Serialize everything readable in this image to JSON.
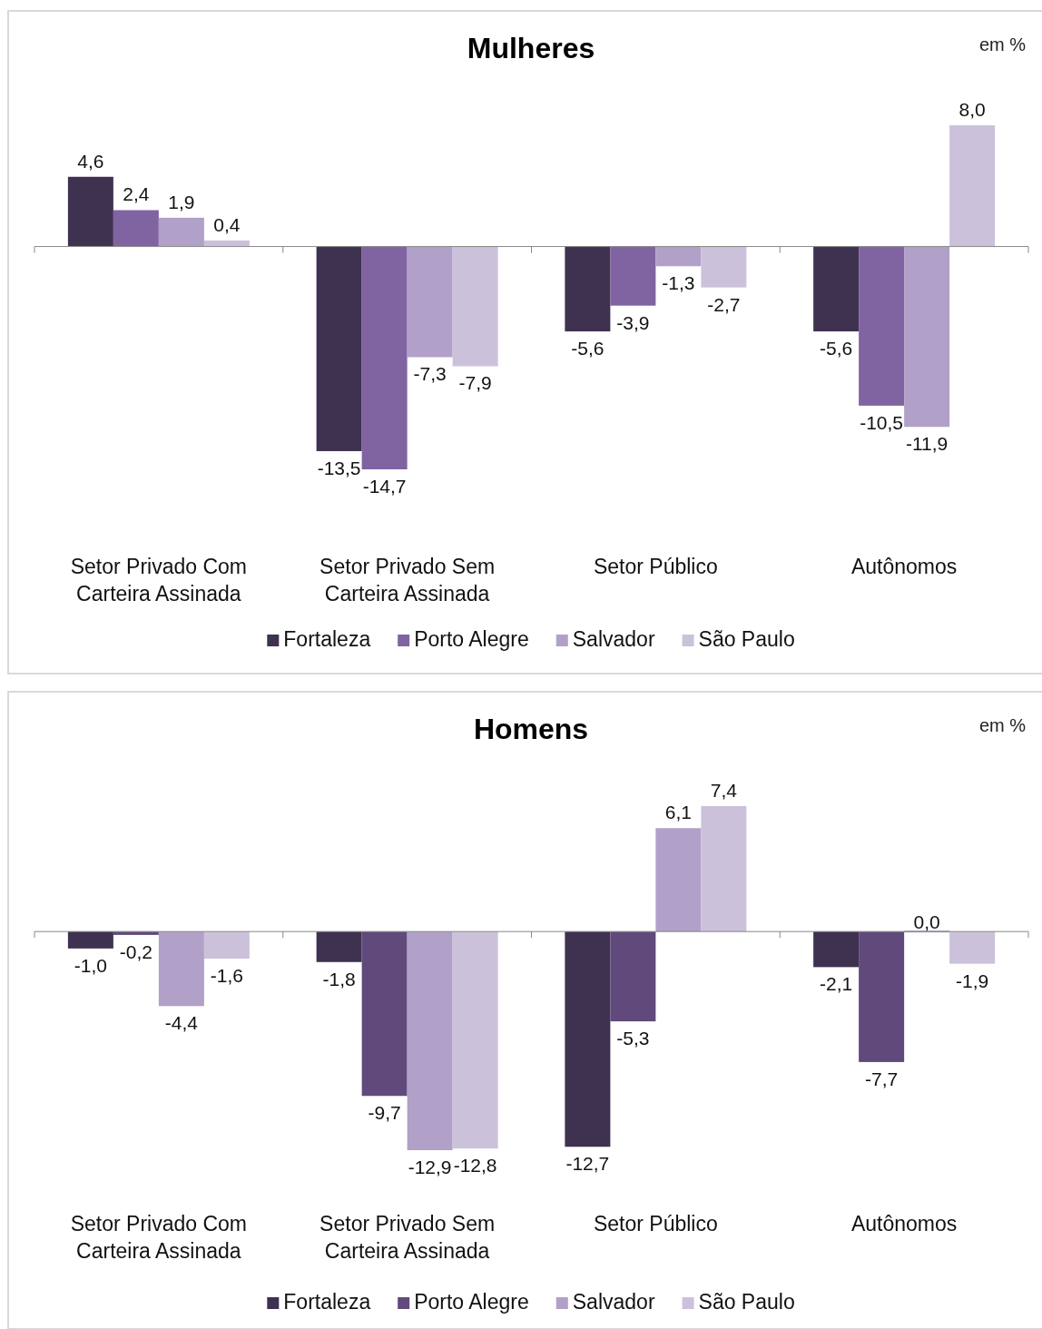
{
  "chart_data": [
    {
      "type": "bar",
      "title": "Mulheres",
      "annotations": [
        "em %"
      ],
      "categories": [
        "Setor Privado Com Carteira Assinada",
        "Setor Privado Sem Carteira Assinada",
        "Setor Público",
        "Autônomos"
      ],
      "legend": "bottom",
      "series": [
        {
          "name": "Fortaleza",
          "color": "#3f3150",
          "values": [
            4.6,
            -13.5,
            -5.6,
            -5.6
          ],
          "value_labels": [
            "4,6",
            "-13,5",
            "-5,6",
            "-5,6"
          ]
        },
        {
          "name": "Porto Alegre",
          "color": "#8064a2",
          "values": [
            2.4,
            -14.7,
            -3.9,
            -10.5
          ],
          "value_labels": [
            "2,4",
            "-14,7",
            "-3,9",
            "-10,5"
          ]
        },
        {
          "name": "Salvador",
          "color": "#b1a0c7",
          "values": [
            1.9,
            -7.3,
            -1.3,
            -11.9
          ],
          "value_labels": [
            "1,9",
            "-7,3",
            "-1,3",
            "-11,9"
          ]
        },
        {
          "name": "São Paulo",
          "color": "#ccc1da",
          "values": [
            0.4,
            -7.9,
            -2.7,
            8.0
          ],
          "value_labels": [
            "0,4",
            "-7,9",
            "-2,7",
            "8,0"
          ]
        }
      ]
    },
    {
      "type": "bar",
      "title": "Homens",
      "annotations": [
        "em %"
      ],
      "categories": [
        "Setor Privado Com Carteira Assinada",
        "Setor Privado Sem Carteira Assinada",
        "Setor Público",
        "Autônomos"
      ],
      "legend": "bottom",
      "series": [
        {
          "name": "Fortaleza",
          "color": "#3f3150",
          "values": [
            -1.0,
            -1.8,
            -12.7,
            -2.1
          ],
          "value_labels": [
            "-1,0",
            "-1,8",
            "-12,7",
            "-2,1"
          ]
        },
        {
          "name": "Porto Alegre",
          "color": "#604a7b",
          "values": [
            -0.2,
            -9.7,
            -5.3,
            -7.7
          ],
          "value_labels": [
            "-0,2",
            "-9,7",
            "-5,3",
            "-7,7"
          ]
        },
        {
          "name": "Salvador",
          "color": "#b1a0c7",
          "values": [
            -4.4,
            -12.9,
            6.1,
            0.0
          ],
          "value_labels": [
            "-4,4",
            "-12,9",
            "6,1",
            "0,0"
          ]
        },
        {
          "name": "São Paulo",
          "color": "#ccc1da",
          "values": [
            -1.6,
            -12.8,
            7.4,
            -1.9
          ],
          "value_labels": [
            "-1,6",
            "-12,8",
            "7,4",
            "-1,9"
          ]
        }
      ]
    }
  ]
}
